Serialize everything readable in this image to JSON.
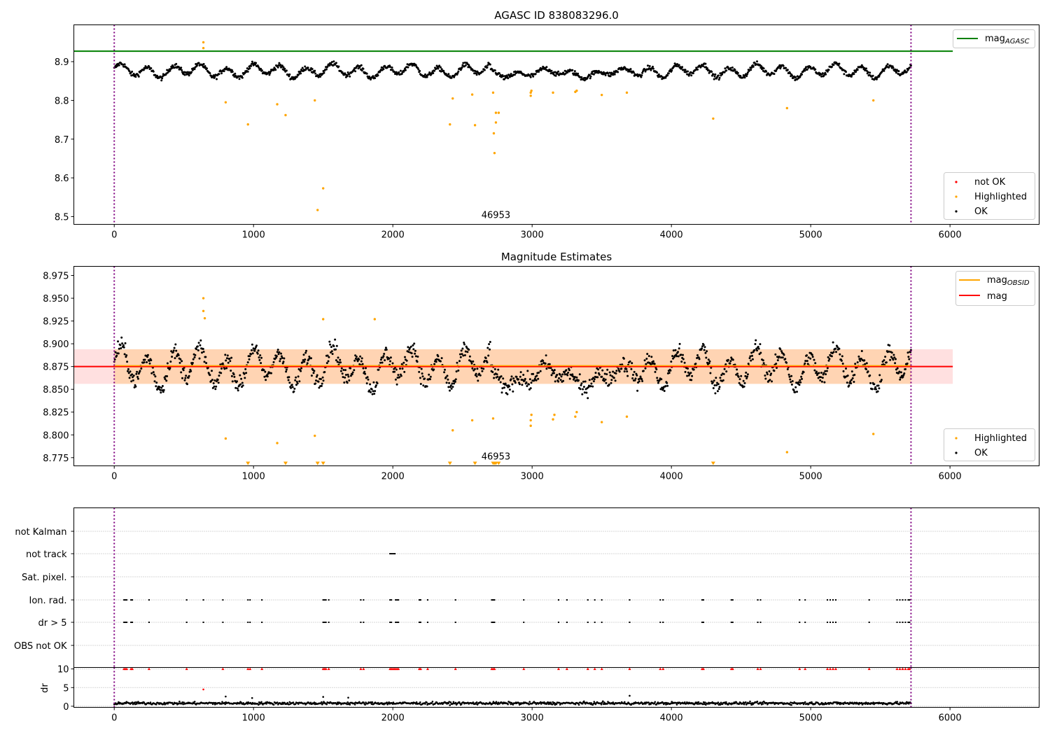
{
  "chart_data": [
    {
      "type": "scatter",
      "title": "AGASC ID 838083296.0",
      "xlim": [
        -290,
        6640
      ],
      "ylim": [
        8.48,
        8.995
      ],
      "xticks": [
        0,
        1000,
        2000,
        3000,
        4000,
        5000,
        6000
      ],
      "yticks": [
        8.5,
        8.6,
        8.7,
        8.8,
        8.9
      ],
      "grid": false,
      "mag_agasc": 8.927,
      "obsid_label": "46953",
      "obsid_label_x": 2740,
      "vlines": [
        0,
        5720
      ],
      "legend_top": [
        {
          "label": "mag",
          "sub": "AGASC",
          "color": "#008000"
        }
      ],
      "legend_bottom": [
        {
          "label": "not OK",
          "color": "#ff0000"
        },
        {
          "label": "Highlighted",
          "color": "#ffa500"
        },
        {
          "label": "OK",
          "color": "#000000"
        }
      ],
      "legend_placement": [
        "top-right",
        "bottom-right"
      ],
      "ok_series": {
        "x_range": [
          0,
          5720
        ],
        "baseline": 8.876,
        "amplitude": 0.024
      },
      "highlighted": [
        {
          "x": 640,
          "y": 8.95
        },
        {
          "x": 640,
          "y": 8.935
        },
        {
          "x": 800,
          "y": 8.795
        },
        {
          "x": 960,
          "y": 8.738
        },
        {
          "x": 1170,
          "y": 8.79
        },
        {
          "x": 1230,
          "y": 8.762
        },
        {
          "x": 1440,
          "y": 8.8
        },
        {
          "x": 1460,
          "y": 8.517
        },
        {
          "x": 1500,
          "y": 8.573
        },
        {
          "x": 2410,
          "y": 8.738
        },
        {
          "x": 2430,
          "y": 8.805
        },
        {
          "x": 2570,
          "y": 8.815
        },
        {
          "x": 2590,
          "y": 8.736
        },
        {
          "x": 2720,
          "y": 8.82
        },
        {
          "x": 2725,
          "y": 8.715
        },
        {
          "x": 2730,
          "y": 8.664
        },
        {
          "x": 2740,
          "y": 8.743
        },
        {
          "x": 2740,
          "y": 8.768
        },
        {
          "x": 2760,
          "y": 8.768
        },
        {
          "x": 2990,
          "y": 8.812
        },
        {
          "x": 2990,
          "y": 8.82
        },
        {
          "x": 2995,
          "y": 8.825
        },
        {
          "x": 3150,
          "y": 8.82
        },
        {
          "x": 3310,
          "y": 8.822
        },
        {
          "x": 3320,
          "y": 8.825
        },
        {
          "x": 3500,
          "y": 8.814
        },
        {
          "x": 3680,
          "y": 8.82
        },
        {
          "x": 4300,
          "y": 8.753
        },
        {
          "x": 4830,
          "y": 8.78
        },
        {
          "x": 5450,
          "y": 8.8
        }
      ]
    },
    {
      "type": "scatter",
      "title": "Magnitude Estimates",
      "xlim": [
        -290,
        6640
      ],
      "ylim": [
        8.766,
        8.985
      ],
      "xticks": [
        0,
        1000,
        2000,
        3000,
        4000,
        5000,
        6000
      ],
      "yticks": [
        8.775,
        8.8,
        8.825,
        8.85,
        8.875,
        8.9,
        8.925,
        8.95,
        8.975
      ],
      "grid": false,
      "mag": 8.875,
      "mag_obsid": 8.876,
      "mag_band": [
        8.856,
        8.894
      ],
      "obsid_label": "46953",
      "obsid_label_x": 2740,
      "vlines": [
        0,
        5720
      ],
      "legend_top": [
        {
          "label": "mag",
          "sub": "OBSID",
          "color": "#ffa500"
        },
        {
          "label": "mag",
          "sub": "",
          "color": "#ff0000"
        }
      ],
      "legend_bottom": [
        {
          "label": "Highlighted",
          "color": "#ffa500"
        },
        {
          "label": "OK",
          "color": "#000000"
        }
      ],
      "legend_placement": [
        "top-right",
        "bottom-right"
      ],
      "ok_series": {
        "x_range": [
          0,
          5720
        ],
        "baseline": 8.874,
        "amplitude": 0.03
      },
      "highlighted": [
        {
          "x": 640,
          "y": 8.95
        },
        {
          "x": 640,
          "y": 8.936
        },
        {
          "x": 650,
          "y": 8.928
        },
        {
          "x": 800,
          "y": 8.796
        },
        {
          "x": 1170,
          "y": 8.791
        },
        {
          "x": 1440,
          "y": 8.799
        },
        {
          "x": 1500,
          "y": 8.927
        },
        {
          "x": 1870,
          "y": 8.927
        },
        {
          "x": 2430,
          "y": 8.805
        },
        {
          "x": 2570,
          "y": 8.816
        },
        {
          "x": 2720,
          "y": 8.818
        },
        {
          "x": 2990,
          "y": 8.81
        },
        {
          "x": 2990,
          "y": 8.816
        },
        {
          "x": 2995,
          "y": 8.822
        },
        {
          "x": 3150,
          "y": 8.817
        },
        {
          "x": 3160,
          "y": 8.822
        },
        {
          "x": 3310,
          "y": 8.82
        },
        {
          "x": 3320,
          "y": 8.825
        },
        {
          "x": 3500,
          "y": 8.814
        },
        {
          "x": 3680,
          "y": 8.82
        },
        {
          "x": 4830,
          "y": 8.781
        },
        {
          "x": 5450,
          "y": 8.801
        }
      ],
      "lower_markers_x": [
        960,
        1230,
        1460,
        1500,
        2410,
        2590,
        2720,
        2730,
        2740,
        2760,
        4300
      ]
    },
    {
      "type": "scatter",
      "title": "",
      "xlim": [
        -290,
        6640
      ],
      "xticks": [
        0,
        1000,
        2000,
        3000,
        4000,
        5000,
        6000
      ],
      "flag_rows": [
        "not Kalman",
        "not track",
        "Sat. pixel.",
        "Ion. rad.",
        "dr > 5",
        "OBS not OK"
      ],
      "flags": {
        "not Kalman": [],
        "not track": [
          1980,
          1990,
          2000,
          2010,
          2015
        ],
        "Sat. pixel.": [],
        "Ion. rad.": [
          70,
          80,
          90,
          120,
          130,
          250,
          520,
          640,
          780,
          960,
          975,
          1060,
          1500,
          1510,
          1520,
          1540,
          1770,
          1790,
          1980,
          1990,
          2020,
          2030,
          2040,
          2190,
          2200,
          2250,
          2450,
          2710,
          2720,
          2730,
          2940,
          3190,
          3250,
          3400,
          3450,
          3500,
          3700,
          3920,
          3940,
          4220,
          4230,
          4430,
          4440,
          4620,
          4640,
          4920,
          4960,
          5120,
          5140,
          5160,
          5180,
          5420,
          5620,
          5640,
          5660,
          5680,
          5700,
          5710
        ],
        "dr > 5": [
          70,
          80,
          90,
          120,
          130,
          250,
          520,
          640,
          780,
          960,
          975,
          1060,
          1500,
          1510,
          1520,
          1540,
          1770,
          1790,
          1980,
          1990,
          2020,
          2030,
          2040,
          2190,
          2200,
          2250,
          2450,
          2710,
          2720,
          2730,
          2940,
          3190,
          3250,
          3400,
          3450,
          3500,
          3700,
          3920,
          3940,
          4220,
          4230,
          4430,
          4440,
          4620,
          4640,
          4920,
          4960,
          5120,
          5140,
          5160,
          5180,
          5420,
          5620,
          5640,
          5660,
          5680,
          5700,
          5710
        ],
        "OBS not OK": []
      },
      "vlines": [
        0,
        5720
      ]
    },
    {
      "type": "scatter",
      "ylabel": "dr",
      "xlim": [
        -290,
        6640
      ],
      "ylim": [
        -0.3,
        10.4
      ],
      "xticks": [
        0,
        1000,
        2000,
        3000,
        4000,
        5000,
        6000
      ],
      "yticks": [
        0,
        5,
        10
      ],
      "grid": true,
      "dr_typical": 0.8,
      "clipped_at": 10,
      "clipped_x": [
        70,
        80,
        90,
        120,
        130,
        250,
        520,
        780,
        960,
        975,
        1060,
        1500,
        1510,
        1520,
        1540,
        1770,
        1790,
        1980,
        1990,
        2000,
        2010,
        2020,
        2030,
        2040,
        2190,
        2200,
        2250,
        2450,
        2710,
        2720,
        2730,
        2940,
        3190,
        3250,
        3400,
        3450,
        3500,
        3700,
        3920,
        3940,
        4220,
        4230,
        4430,
        4440,
        4620,
        4640,
        4920,
        4960,
        5120,
        5140,
        5160,
        5180,
        5420,
        5620,
        5640,
        5660,
        5680,
        5700,
        5710
      ],
      "red_points": [
        {
          "x": 640,
          "y": 4.5
        }
      ],
      "black_outliers": [
        {
          "x": 800,
          "y": 2.6
        },
        {
          "x": 990,
          "y": 2.2
        },
        {
          "x": 1500,
          "y": 2.5
        },
        {
          "x": 1680,
          "y": 2.3
        },
        {
          "x": 3700,
          "y": 2.8
        }
      ],
      "vlines": [
        0,
        5720
      ]
    }
  ]
}
